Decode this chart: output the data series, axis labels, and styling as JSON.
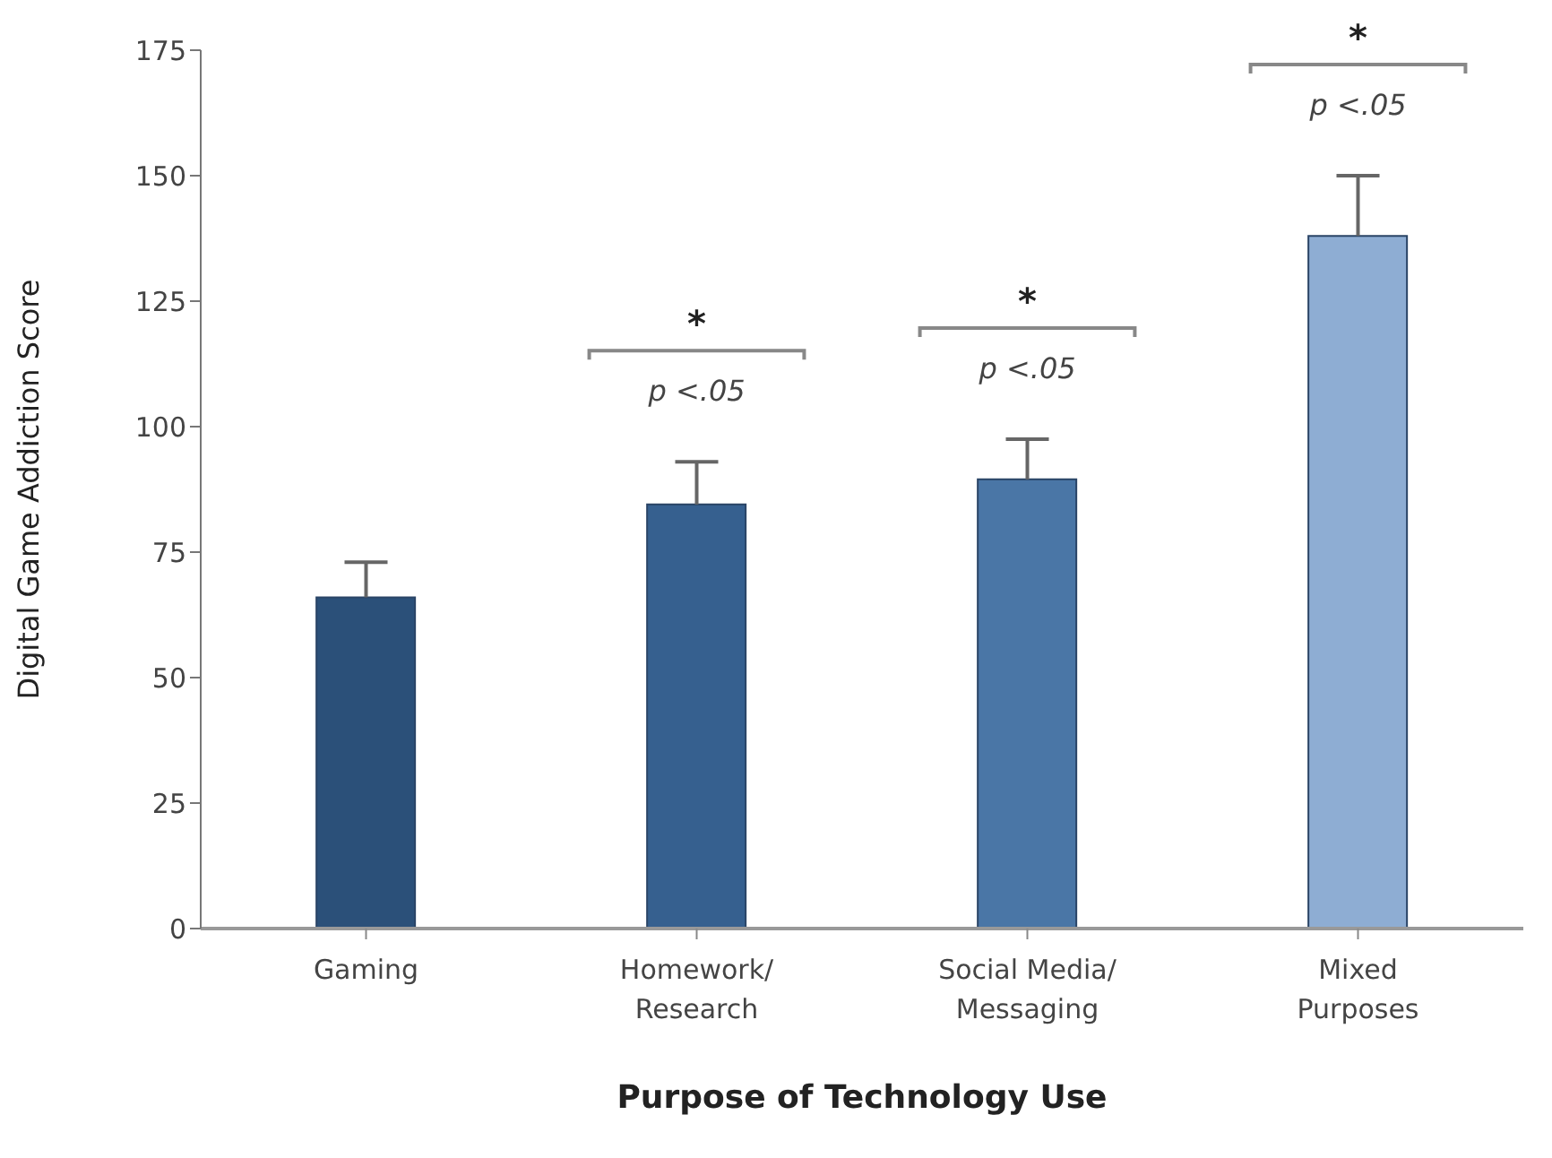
{
  "chart_data": {
    "type": "bar",
    "xlabel": "Purpose of Technology Use",
    "ylabel": "Digital Game Addiction Score",
    "categories": [
      "Gaming",
      "Homework/\nResearch",
      "Social Media/\nMessaging",
      "Mixed\nPurposes"
    ],
    "values": [
      66,
      84.5,
      89.5,
      138
    ],
    "errors": [
      [
        66,
        73
      ],
      [
        84.5,
        93
      ],
      [
        89.5,
        97.5
      ],
      [
        138,
        150
      ]
    ],
    "colors": [
      "#2b5079",
      "#36608f",
      "#4a76a6",
      "#8eadd3"
    ],
    "ylim": [
      0,
      175
    ],
    "yticks": [
      0,
      25,
      50,
      75,
      100,
      125,
      150,
      175
    ],
    "grid": false,
    "legend": false,
    "annotations": [
      "*",
      "p <.05",
      "*",
      "p <.05",
      "*",
      "p <.05"
    ]
  }
}
